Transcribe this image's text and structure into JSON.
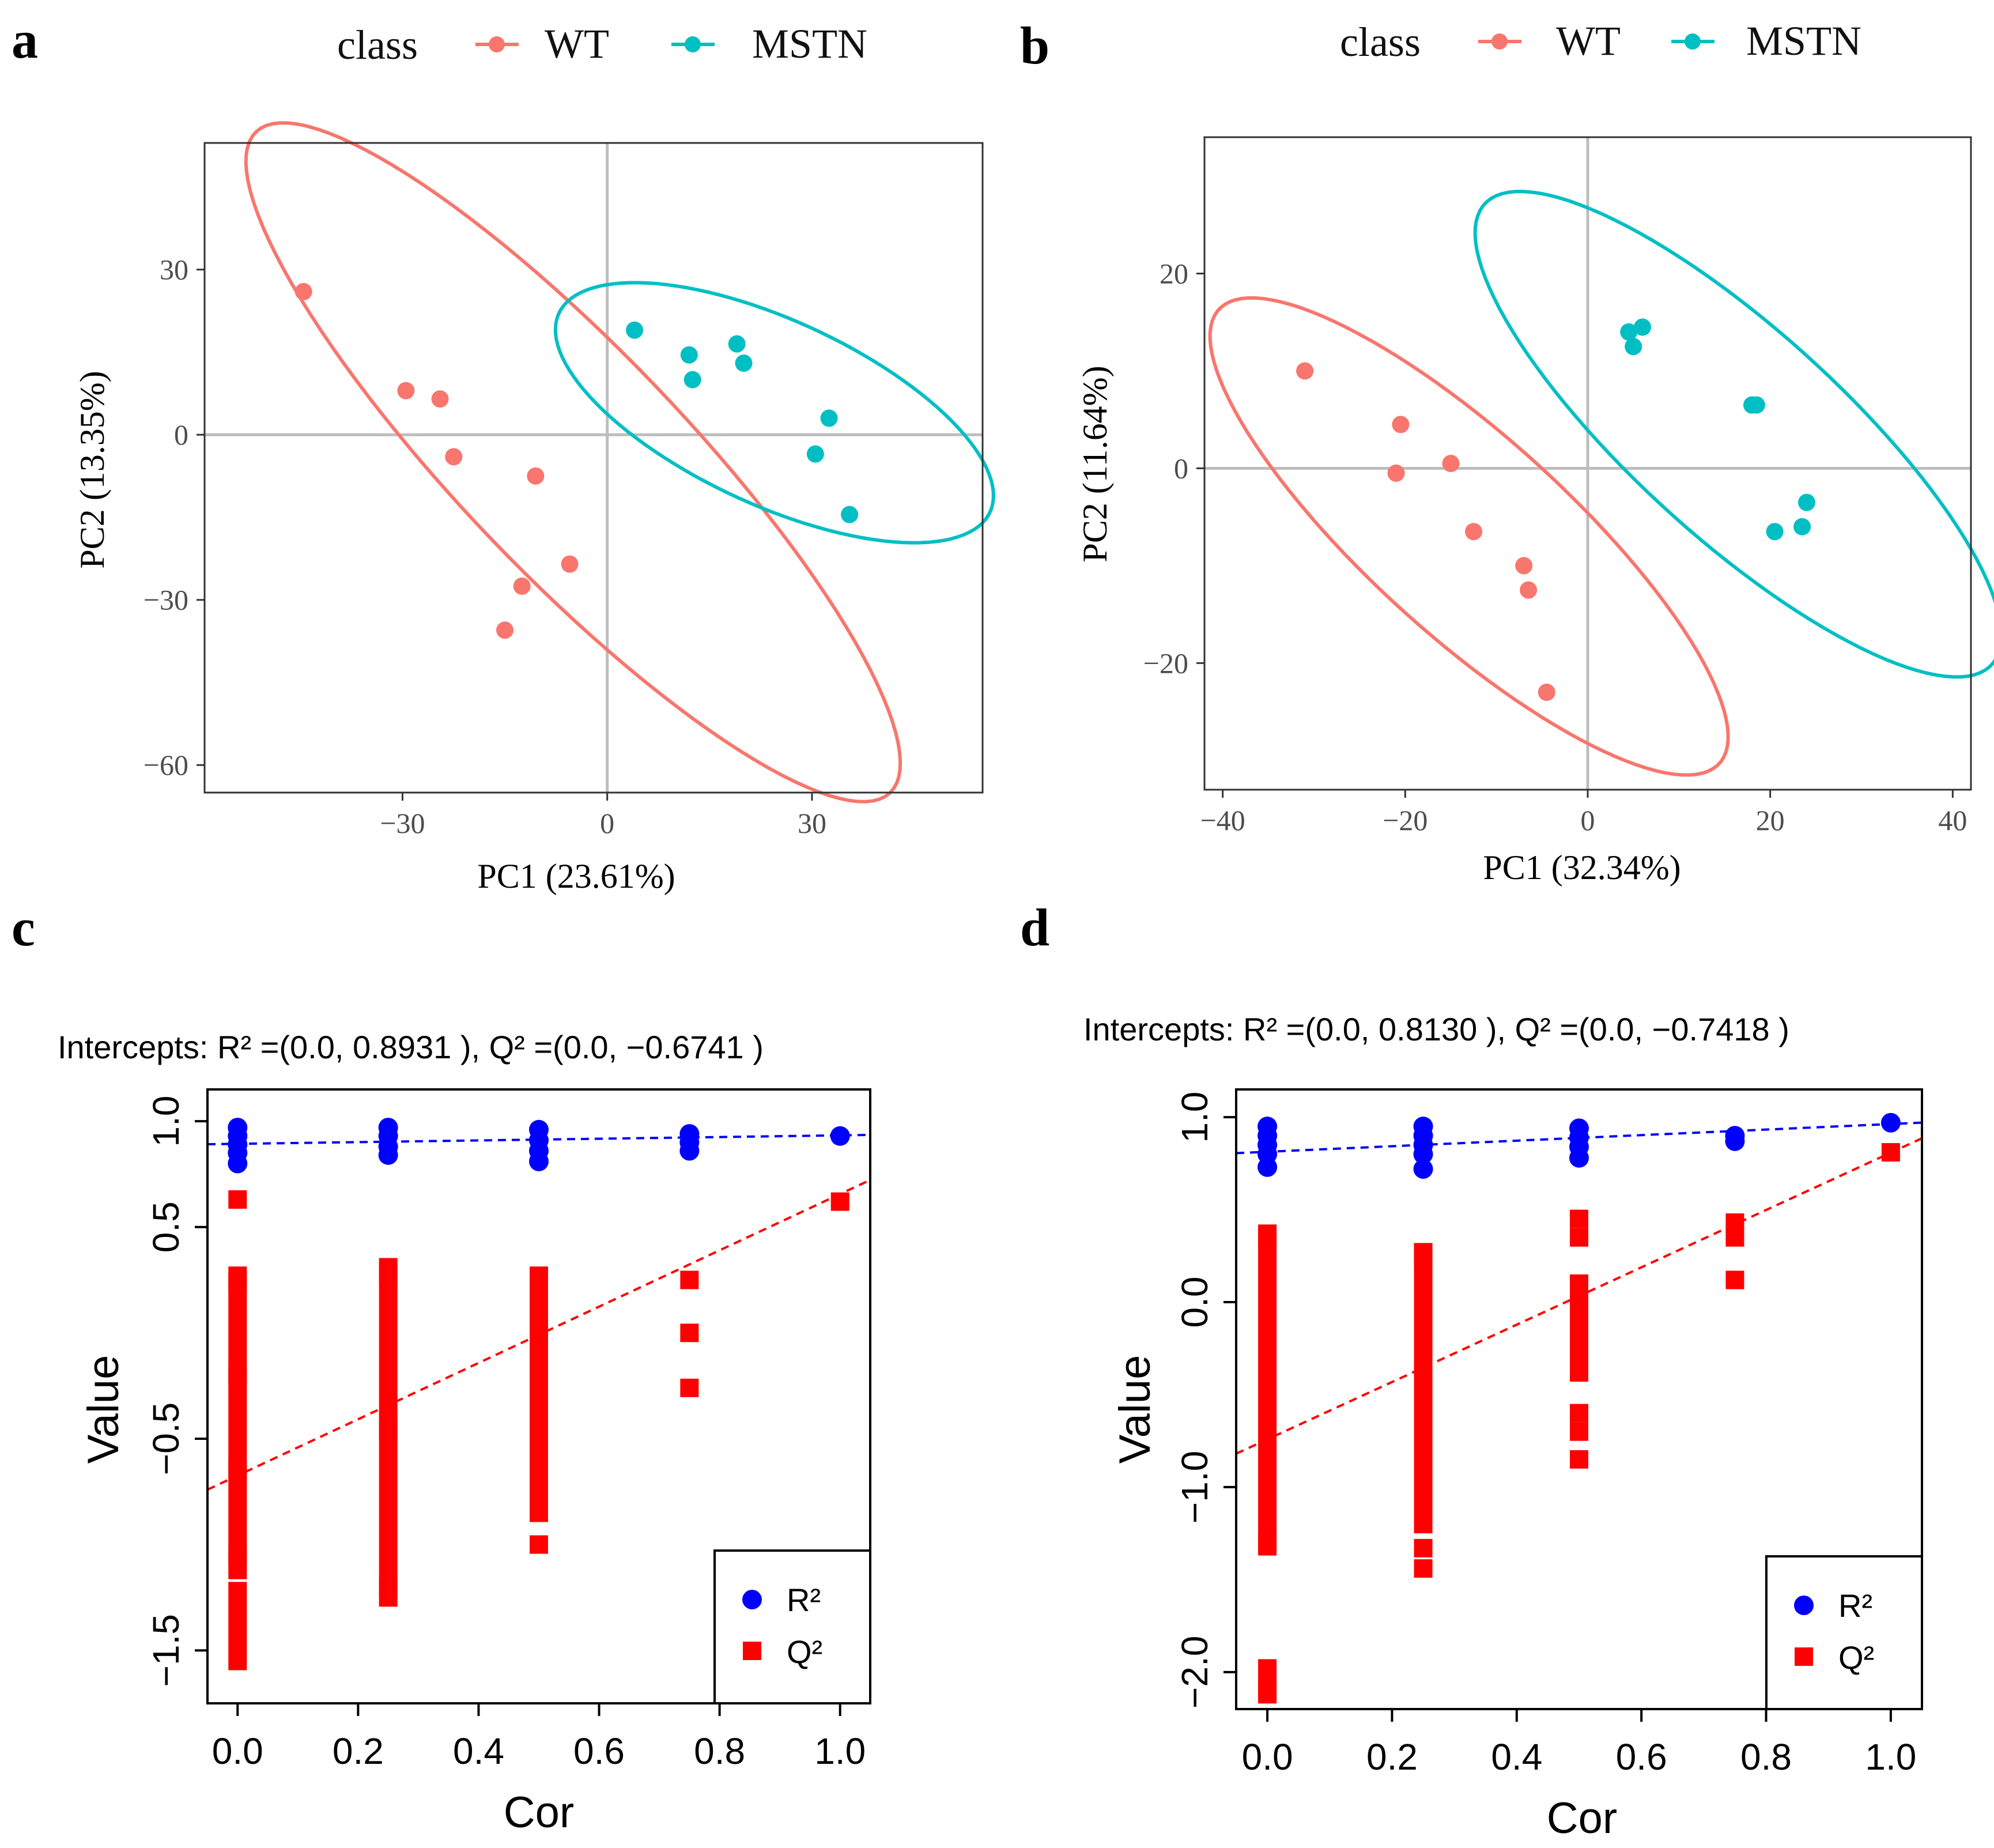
{
  "chart_data": [
    {
      "panel": "a",
      "type": "scatter",
      "legend_title": "class",
      "legend_position": "top",
      "series": [
        {
          "name": "WT",
          "color": "#F8766D",
          "x": [
            -44.5,
            -29.5,
            -24.5,
            -22.5,
            -10.5,
            -5.5,
            -12.5,
            -15
          ],
          "y": [
            26,
            8,
            6.5,
            -4,
            -7.5,
            -23.5,
            -27.5,
            -35.5
          ],
          "ellipse": {
            "cx": -5,
            "cy": -5,
            "a": 76,
            "b": 18,
            "angle": -53
          }
        },
        {
          "name": "MSTN",
          "color": "#00BFC4",
          "x": [
            4,
            12,
            12.5,
            19,
            20,
            32.5,
            30.5,
            35.5
          ],
          "y": [
            19,
            14.5,
            10,
            16.5,
            13,
            3,
            -3.5,
            -14.5
          ],
          "ellipse": {
            "cx": 24.5,
            "cy": 4,
            "a": 36.5,
            "b": 16,
            "angle": -32
          }
        }
      ],
      "xlabel": "PC1 (23.61%)",
      "ylabel": "PC2 (13.35%)",
      "xlim": [
        -59,
        55
      ],
      "ylim": [
        -65,
        53
      ],
      "xticks": [
        -30,
        0,
        30
      ],
      "yticks": [
        30,
        0,
        -30,
        -60
      ],
      "reference_lines": {
        "x": 0,
        "y": 0
      }
    },
    {
      "panel": "b",
      "type": "scatter",
      "legend_title": "class",
      "legend_position": "top",
      "series": [
        {
          "name": "WT",
          "color": "#F8766D",
          "x": [
            -31,
            -20.5,
            -21,
            -15,
            -12.5,
            -7,
            -6.5,
            -4.5
          ],
          "y": [
            10,
            4.5,
            -0.5,
            0.5,
            -6.5,
            -10,
            -12.5,
            -23
          ],
          "ellipse": {
            "cx": -13,
            "cy": -7,
            "a": 36,
            "b": 10.5,
            "angle": -40
          }
        },
        {
          "name": "MSTN",
          "color": "#00BFC4",
          "x": [
            4.5,
            6,
            5,
            18,
            18.5,
            20.5,
            23.5,
            24
          ],
          "y": [
            14,
            14.5,
            12.5,
            6.5,
            6.5,
            -6.5,
            -6,
            -3.5
          ],
          "ellipse": {
            "cx": 16.5,
            "cy": 3.5,
            "a": 36.5,
            "b": 11,
            "angle": -40
          }
        }
      ],
      "xlabel": "PC1 (32.34%)",
      "ylabel": "PC2 (11.64%)",
      "xlim": [
        -42,
        42
      ],
      "ylim": [
        -33,
        34
      ],
      "xticks": [
        -40,
        -20,
        0,
        20,
        40
      ],
      "yticks": [
        20,
        0,
        -20
      ],
      "reference_lines": {
        "x": 0,
        "y": 0
      }
    },
    {
      "panel": "c",
      "type": "scatter",
      "title": "Intercepts: R² =(0.0, 0.8931 ), Q² =(0.0, −0.6741 )",
      "series": [
        {
          "name": "R²",
          "color": "#0000FF",
          "marker": "circle",
          "x": [
            0,
            0,
            0,
            0,
            0,
            0.25,
            0.25,
            0.25,
            0.25,
            0.5,
            0.5,
            0.5,
            0.5,
            0.75,
            0.75,
            0.75,
            1.0
          ],
          "y": [
            0.97,
            0.93,
            0.89,
            0.85,
            0.8,
            0.97,
            0.93,
            0.88,
            0.84,
            0.96,
            0.91,
            0.86,
            0.81,
            0.94,
            0.9,
            0.86,
            0.93
          ]
        },
        {
          "name": "Q²",
          "color": "#FF0000",
          "marker": "square",
          "x": [
            0,
            0,
            0,
            0,
            0,
            0.25,
            0.25,
            0.25,
            0.5,
            0.5,
            0.5,
            0.5,
            0.75,
            0.75,
            0.75,
            1.0
          ],
          "y": [
            0.63,
            0.24,
            -0.2,
            -0.65,
            -1.05,
            0.28,
            -0.46,
            -1.2,
            0.2,
            -0.3,
            -0.82,
            -1.0,
            0.25,
            0.0,
            -0.26,
            0.62
          ],
          "ranges": [
            {
              "x": 0,
              "from": 0.27,
              "to": -1.12
            },
            {
              "x": 0,
              "from": -1.22,
              "to": -1.55
            },
            {
              "x": 0.25,
              "from": 0.31,
              "to": -1.25
            },
            {
              "x": 0.5,
              "from": 0.27,
              "to": -0.85
            }
          ]
        }
      ],
      "fit_lines": [
        {
          "name": "R²",
          "intercept": 0.8931,
          "slope": 0.04,
          "color": "#0000FF",
          "style": "dashed"
        },
        {
          "name": "Q²",
          "intercept": -0.6741,
          "slope": 1.33,
          "color": "#FF0000",
          "style": "dashed"
        }
      ],
      "xlabel": "Cor",
      "ylabel": "Value",
      "xlim": [
        -0.05,
        1.05
      ],
      "ylim": [
        -1.75,
        1.15
      ],
      "xticks": [
        0.0,
        0.2,
        0.4,
        0.6,
        0.8,
        1.0
      ],
      "yticks": [
        1.0,
        0.5,
        -0.5,
        -1.5
      ],
      "legend_position": "bottom-right"
    },
    {
      "panel": "d",
      "type": "scatter",
      "title": "Intercepts: R² =(0.0, 0.8130 ), Q² =(0.0, −0.7418 )",
      "series": [
        {
          "name": "R²",
          "color": "#0000FF",
          "marker": "circle",
          "x": [
            0,
            0,
            0,
            0,
            0,
            0.25,
            0.25,
            0.25,
            0.25,
            0.25,
            0.5,
            0.5,
            0.5,
            0.5,
            0.75,
            0.75,
            1.0
          ],
          "y": [
            0.95,
            0.9,
            0.85,
            0.8,
            0.73,
            0.95,
            0.9,
            0.85,
            0.8,
            0.72,
            0.94,
            0.89,
            0.84,
            0.78,
            0.9,
            0.87,
            0.97
          ]
        },
        {
          "name": "Q²",
          "color": "#FF0000",
          "marker": "square",
          "x": [
            0,
            0,
            0,
            0.25,
            0.25,
            0.25,
            0.5,
            0.5,
            0.5,
            0.5,
            0.5,
            0.75,
            0.75,
            0.75,
            1.0
          ],
          "y": [
            0.35,
            -1.3,
            -2.1,
            0.25,
            -1.33,
            -1.44,
            0.45,
            0.35,
            -0.6,
            -0.7,
            -0.85,
            0.43,
            0.35,
            0.12,
            0.81
          ],
          "ranges": [
            {
              "x": 0,
              "from": 0.37,
              "to": -1.32
            },
            {
              "x": 0,
              "from": -1.98,
              "to": -2.12
            },
            {
              "x": 0.25,
              "from": 0.27,
              "to": -1.2
            },
            {
              "x": 0.5,
              "from": 0.1,
              "to": -0.38
            }
          ]
        }
      ],
      "fit_lines": [
        {
          "name": "R²",
          "intercept": 0.813,
          "slope": 0.15,
          "color": "#0000FF",
          "style": "dashed"
        },
        {
          "name": "Q²",
          "intercept": -0.7418,
          "slope": 1.55,
          "color": "#FF0000",
          "style": "dashed"
        }
      ],
      "xlabel": "Cor",
      "ylabel": "Value",
      "xlim": [
        -0.05,
        1.05
      ],
      "ylim": [
        -2.2,
        1.15
      ],
      "xticks": [
        0.0,
        0.2,
        0.4,
        0.6,
        0.8,
        1.0
      ],
      "yticks": [
        1.0,
        0.0,
        -1.0,
        -2.0
      ],
      "legend_position": "bottom-right"
    }
  ]
}
